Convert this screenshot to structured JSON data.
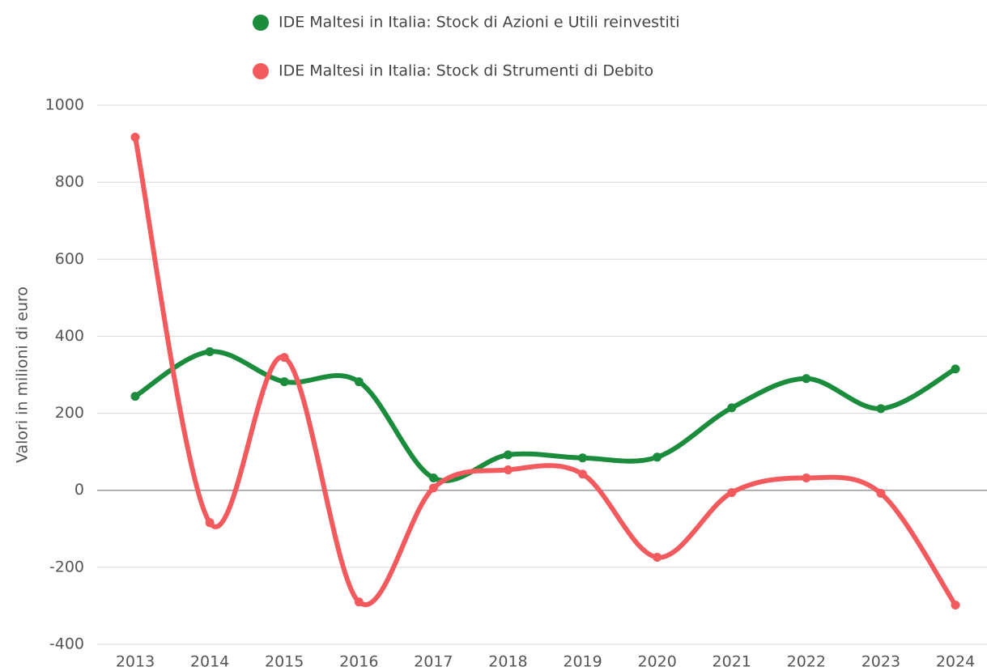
{
  "chart_data": {
    "type": "line",
    "y_label": "Valori in milioni di euro",
    "categories": [
      "2013",
      "2014",
      "2015",
      "2016",
      "2017",
      "2018",
      "2019",
      "2020",
      "2021",
      "2022",
      "2023",
      "2024"
    ],
    "series": [
      {
        "name": "IDE Maltesi in Italia: Stock di Azioni e Utili reinvestiti",
        "color": "#1a8c3c",
        "values": [
          244,
          360,
          282,
          282,
          32,
          92,
          84,
          86,
          214,
          290,
          212,
          315
        ]
      },
      {
        "name": "IDE Maltesi in Italia: Stock di Strumenti di Debito",
        "color": "#f25a5e",
        "values": [
          917,
          -84,
          345,
          -290,
          6,
          53,
          42,
          -174,
          -6,
          32,
          -8,
          -298
        ]
      }
    ],
    "ylim": [
      -400,
      1000
    ],
    "yticks": [
      -400,
      -200,
      0,
      200,
      400,
      600,
      800,
      1000
    ],
    "grid": true,
    "smooth": true
  }
}
